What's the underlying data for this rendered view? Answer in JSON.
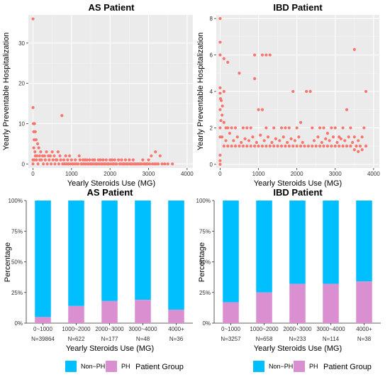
{
  "chart_data": [
    {
      "type": "scatter",
      "title": "AS Patient",
      "xlabel": "Yearly Steroids Use (MG)",
      "ylabel": "Yearly Preventable Hospitalization",
      "xlim": [
        -120,
        4150
      ],
      "ylim": [
        -1,
        37
      ],
      "xticks": [
        0,
        1000,
        2000,
        3000,
        4000
      ],
      "yticks": [
        0,
        10,
        20,
        30
      ],
      "grid": true,
      "point_color": "#F8766D",
      "points": [
        [
          0,
          36
        ],
        [
          0,
          14
        ],
        [
          10,
          10
        ],
        [
          40,
          10
        ],
        [
          20,
          8
        ],
        [
          60,
          8
        ],
        [
          30,
          6
        ],
        [
          80,
          6
        ],
        [
          120,
          5
        ],
        [
          20,
          4
        ],
        [
          150,
          4
        ],
        [
          50,
          3
        ],
        [
          200,
          3
        ],
        [
          350,
          3
        ],
        [
          500,
          3
        ],
        [
          650,
          3
        ],
        [
          3180,
          3
        ],
        [
          3300,
          2
        ],
        [
          3070,
          2
        ],
        [
          2850,
          1
        ],
        [
          3000,
          1
        ],
        [
          3500,
          0
        ],
        [
          3620,
          0
        ],
        [
          3150,
          0
        ],
        [
          2500,
          1
        ],
        [
          2300,
          1
        ],
        [
          2400,
          1
        ],
        [
          2600,
          1
        ],
        [
          2700,
          0
        ],
        [
          2100,
          0
        ],
        [
          1900,
          1
        ],
        [
          2000,
          1
        ],
        [
          1800,
          0
        ],
        [
          1700,
          1
        ],
        [
          1600,
          1
        ],
        [
          1500,
          0
        ],
        [
          1400,
          1
        ],
        [
          1300,
          1
        ],
        [
          1200,
          2
        ],
        [
          1100,
          1
        ],
        [
          1000,
          1
        ],
        [
          950,
          2
        ],
        [
          900,
          1
        ],
        [
          850,
          2
        ],
        [
          800,
          1
        ],
        [
          750,
          12
        ],
        [
          700,
          2
        ],
        [
          600,
          1
        ],
        [
          550,
          2
        ],
        [
          450,
          2
        ],
        [
          400,
          2
        ],
        [
          300,
          2
        ],
        [
          250,
          2
        ],
        [
          100,
          2
        ],
        [
          180,
          1
        ],
        [
          1250,
          0
        ],
        [
          1350,
          1
        ],
        [
          1450,
          0
        ],
        [
          1550,
          1
        ],
        [
          1650,
          0
        ],
        [
          1750,
          1
        ],
        [
          1850,
          0
        ],
        [
          1950,
          0
        ],
        [
          2050,
          1
        ],
        [
          2150,
          0
        ],
        [
          2250,
          0
        ],
        [
          2350,
          0
        ],
        [
          2450,
          0
        ],
        [
          2550,
          0
        ],
        [
          2650,
          0
        ],
        [
          2750,
          0
        ],
        [
          2950,
          0
        ],
        [
          0,
          1
        ],
        [
          0,
          0
        ],
        [
          30,
          1
        ],
        [
          60,
          2
        ],
        [
          90,
          1
        ],
        [
          130,
          0
        ],
        [
          170,
          2
        ],
        [
          220,
          1
        ],
        [
          270,
          0
        ],
        [
          320,
          1
        ],
        [
          370,
          0
        ],
        [
          420,
          1
        ],
        [
          470,
          0
        ],
        [
          520,
          1
        ],
        [
          570,
          0
        ],
        [
          620,
          1
        ],
        [
          670,
          0
        ],
        [
          720,
          1
        ],
        [
          770,
          0
        ],
        [
          820,
          0
        ],
        [
          870,
          0
        ],
        [
          920,
          0
        ],
        [
          970,
          0
        ],
        [
          1020,
          0
        ],
        [
          1070,
          0
        ],
        [
          1120,
          0
        ],
        [
          1170,
          0
        ],
        [
          1220,
          1
        ],
        [
          1270,
          0
        ],
        [
          1320,
          0
        ],
        [
          1370,
          0
        ],
        [
          1420,
          0
        ],
        [
          1470,
          1
        ],
        [
          1520,
          0
        ],
        [
          1570,
          0
        ],
        [
          1620,
          0
        ],
        [
          1670,
          0
        ],
        [
          1720,
          0
        ],
        [
          1770,
          0
        ],
        [
          1820,
          1
        ],
        [
          1870,
          0
        ],
        [
          1920,
          0
        ],
        [
          1970,
          0
        ],
        [
          2020,
          0
        ],
        [
          2070,
          0
        ],
        [
          2120,
          1
        ],
        [
          2170,
          0
        ],
        [
          2220,
          1
        ],
        [
          2270,
          0
        ],
        [
          2320,
          0
        ],
        [
          2370,
          0
        ],
        [
          2420,
          0
        ],
        [
          2470,
          0
        ],
        [
          2520,
          0
        ],
        [
          2570,
          0
        ],
        [
          2620,
          0
        ],
        [
          2670,
          0
        ],
        [
          2720,
          0
        ],
        [
          2780,
          0
        ],
        [
          2820,
          0
        ],
        [
          2880,
          0
        ],
        [
          2920,
          0
        ],
        [
          2980,
          0
        ],
        [
          3030,
          0
        ],
        [
          3100,
          0
        ],
        [
          3200,
          0
        ],
        [
          3250,
          0
        ],
        [
          3350,
          0
        ],
        [
          3420,
          0
        ]
      ]
    },
    {
      "type": "scatter",
      "title": "IBD Patient",
      "xlabel": "Yearly Steroids Use (MG)",
      "ylabel": "Yearly Preventable Hospitalization",
      "xlim": [
        -100,
        4150
      ],
      "ylim": [
        -0.2,
        8.2
      ],
      "xticks": [
        0,
        1000,
        2000,
        3000,
        4000
      ],
      "yticks": [
        0,
        2,
        4,
        6,
        8
      ],
      "grid": true,
      "point_color": "#F8766D",
      "points": [
        [
          0,
          8
        ],
        [
          0,
          6.7
        ],
        [
          0,
          6
        ],
        [
          100,
          5.8
        ],
        [
          200,
          5.6
        ],
        [
          500,
          5
        ],
        [
          900,
          6
        ],
        [
          1100,
          6
        ],
        [
          1200,
          6
        ],
        [
          1300,
          6
        ],
        [
          900,
          4.7
        ],
        [
          0,
          4.2
        ],
        [
          0,
          3.9
        ],
        [
          100,
          4
        ],
        [
          30,
          3.5
        ],
        [
          0,
          3
        ],
        [
          50,
          2.7
        ],
        [
          100,
          2.3
        ],
        [
          150,
          2
        ],
        [
          200,
          2
        ],
        [
          300,
          2
        ],
        [
          400,
          2
        ],
        [
          600,
          2
        ],
        [
          700,
          2
        ],
        [
          800,
          2
        ],
        [
          1000,
          3
        ],
        [
          1100,
          3
        ],
        [
          1200,
          2
        ],
        [
          1400,
          2
        ],
        [
          1600,
          2
        ],
        [
          1700,
          2
        ],
        [
          1800,
          2
        ],
        [
          1900,
          4
        ],
        [
          2000,
          2
        ],
        [
          2100,
          2.3
        ],
        [
          2250,
          4
        ],
        [
          2350,
          4
        ],
        [
          2400,
          2
        ],
        [
          2600,
          2
        ],
        [
          2700,
          2
        ],
        [
          2800,
          1.7
        ],
        [
          2900,
          2
        ],
        [
          3000,
          2
        ],
        [
          3100,
          1.5
        ],
        [
          3200,
          2
        ],
        [
          3300,
          3
        ],
        [
          3400,
          2
        ],
        [
          3500,
          1.5
        ],
        [
          3600,
          1.3
        ],
        [
          3700,
          1.5
        ],
        [
          3750,
          2
        ],
        [
          3800,
          1
        ],
        [
          3800,
          4
        ],
        [
          3500,
          6.3
        ],
        [
          3400,
          1
        ],
        [
          3300,
          1
        ],
        [
          3200,
          1
        ],
        [
          3100,
          1
        ],
        [
          3000,
          1
        ],
        [
          2900,
          1
        ],
        [
          2800,
          1
        ],
        [
          2700,
          1
        ],
        [
          2600,
          1
        ],
        [
          2500,
          1
        ],
        [
          2400,
          1
        ],
        [
          2300,
          1
        ],
        [
          2200,
          1
        ],
        [
          2100,
          1
        ],
        [
          2000,
          1
        ],
        [
          1900,
          1
        ],
        [
          1800,
          1
        ],
        [
          1700,
          1
        ],
        [
          1600,
          1
        ],
        [
          1500,
          1
        ],
        [
          1400,
          1
        ],
        [
          1300,
          1
        ],
        [
          1200,
          1
        ],
        [
          1100,
          1
        ],
        [
          1000,
          1
        ],
        [
          900,
          1
        ],
        [
          800,
          1
        ],
        [
          700,
          1
        ],
        [
          600,
          1
        ],
        [
          500,
          1
        ],
        [
          400,
          1
        ],
        [
          300,
          1
        ],
        [
          200,
          1
        ],
        [
          100,
          1
        ],
        [
          50,
          1.5
        ],
        [
          150,
          1.3
        ],
        [
          250,
          1.7
        ],
        [
          350,
          1.3
        ],
        [
          450,
          1.5
        ],
        [
          550,
          1.2
        ],
        [
          650,
          1.4
        ],
        [
          750,
          1.3
        ],
        [
          850,
          1.5
        ],
        [
          950,
          1.2
        ],
        [
          1050,
          1.6
        ],
        [
          1150,
          1.3
        ],
        [
          1250,
          1.5
        ],
        [
          1350,
          1.2
        ],
        [
          1450,
          1.4
        ],
        [
          1550,
          1.3
        ],
        [
          1650,
          1.5
        ],
        [
          1750,
          1.2
        ],
        [
          1850,
          1.4
        ],
        [
          1950,
          1.3
        ],
        [
          2050,
          1.5
        ],
        [
          2150,
          1.2
        ],
        [
          2450,
          1.3
        ],
        [
          2550,
          1.5
        ],
        [
          2650,
          1.2
        ],
        [
          2750,
          1.4
        ],
        [
          2850,
          1.3
        ],
        [
          2950,
          1.5
        ],
        [
          3050,
          1.2
        ],
        [
          3150,
          1.4
        ],
        [
          3250,
          1.3
        ],
        [
          3350,
          1.5
        ],
        [
          3450,
          1.2
        ],
        [
          3550,
          1
        ],
        [
          3650,
          1
        ],
        [
          3700,
          0.8
        ],
        [
          3600,
          0.7
        ],
        [
          3500,
          0.8
        ],
        [
          0,
          2
        ],
        [
          0,
          1.5
        ],
        [
          20,
          2.4
        ],
        [
          60,
          3.2
        ],
        [
          10,
          3.6
        ],
        [
          0,
          0.5
        ],
        [
          0,
          0.2
        ],
        [
          0,
          0
        ]
      ]
    },
    {
      "type": "bar",
      "title": "AS Patient",
      "xlabel": "Yearly Steroids Use (MG)",
      "ylabel": "Percentage",
      "categories": [
        "0~1000",
        "1000~2000",
        "2000~3000",
        "3000~4000",
        "4000+"
      ],
      "counts": [
        "N=39864",
        "N=622",
        "N=177",
        "N=48",
        "N=36"
      ],
      "yticks": [
        "0%",
        "25%",
        "50%",
        "75%",
        "100%"
      ],
      "ylim": [
        0,
        100
      ],
      "series": [
        {
          "name": "Non−PH",
          "color": "#00BFFF",
          "values": [
            95,
            86,
            82,
            81,
            89
          ]
        },
        {
          "name": "PH",
          "color": "#DA8FD0",
          "values": [
            5,
            14,
            18,
            19,
            11
          ]
        }
      ]
    },
    {
      "type": "bar",
      "title": "IBD Patient",
      "xlabel": "Yearly Steroids Use (MG)",
      "ylabel": "Percentage",
      "categories": [
        "0~1000",
        "1000~2000",
        "2000~3000",
        "3000~4000",
        "4000+"
      ],
      "counts": [
        "N=3257",
        "N=658",
        "N=233",
        "N=114",
        "N=38"
      ],
      "yticks": [
        "0%",
        "25%",
        "50%",
        "75%",
        "100%"
      ],
      "ylim": [
        0,
        100
      ],
      "series": [
        {
          "name": "Non−PH",
          "color": "#00BFFF",
          "values": [
            83,
            75,
            68,
            68,
            66
          ]
        },
        {
          "name": "PH",
          "color": "#DA8FD0",
          "values": [
            17,
            25,
            32,
            32,
            34
          ]
        }
      ]
    }
  ],
  "legend": {
    "title": "Patient Group",
    "items": [
      {
        "label": "Non−PH",
        "color": "#00BFFF"
      },
      {
        "label": "PH",
        "color": "#DA8FD0"
      }
    ]
  }
}
